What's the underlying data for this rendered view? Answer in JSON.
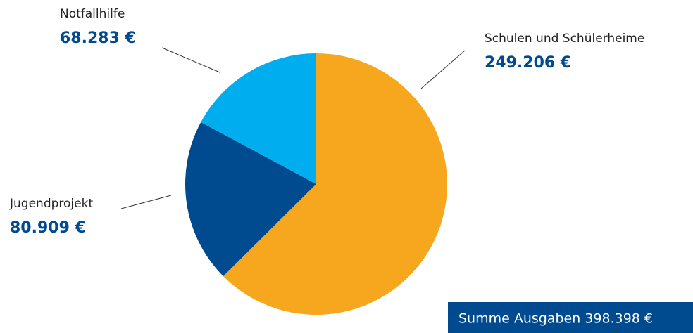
{
  "chart_data": {
    "type": "pie",
    "categories": [
      "Schulen und Schülerheime",
      "Jugendprojekt",
      "Notfallhilfe"
    ],
    "values": [
      249206,
      80909,
      68283
    ],
    "value_labels": [
      "249.206 €",
      "80.909 €",
      "68.283 €"
    ],
    "colors": [
      "#f7a71d",
      "#004a8f",
      "#00aeef"
    ],
    "annotation": "Summe Ausgaben 398.398 €"
  }
}
